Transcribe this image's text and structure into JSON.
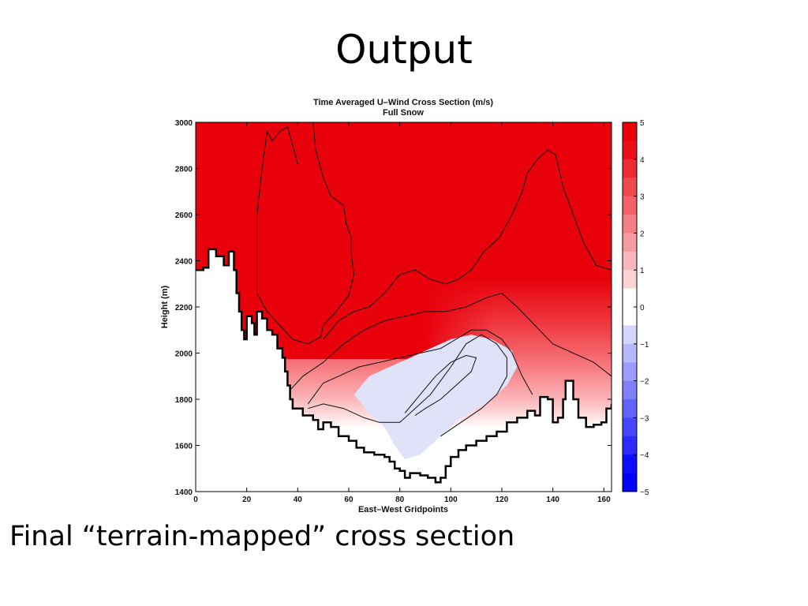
{
  "slide": {
    "title": "Output",
    "caption": "Final “terrain-mapped” cross section"
  },
  "chart_data": {
    "type": "heatmap",
    "title": "Time Averaged U–Wind Cross Section (m/s)",
    "subtitle": "Full Snow",
    "xlabel": "East–West Gridpoints",
    "ylabel": "Height (m)",
    "xlim": [
      0,
      163
    ],
    "ylim": [
      1400,
      3000
    ],
    "xticks": [
      "0",
      "20",
      "40",
      "60",
      "80",
      "100",
      "120",
      "140",
      "160"
    ],
    "yticks": [
      "1400",
      "1600",
      "1800",
      "2000",
      "2200",
      "2400",
      "2600",
      "2800",
      "3000"
    ],
    "colorbar": {
      "range": [
        -5,
        5
      ],
      "ticks": [
        "5",
        "4",
        "3",
        "2",
        "1",
        "0",
        "−1",
        "−2",
        "−3",
        "−4",
        "−5"
      ],
      "positive_color": "#e8000a",
      "negative_color": "#0000ff",
      "zero_color": "#ffffff"
    },
    "terrain": [
      [
        0,
        2360
      ],
      [
        3,
        2370
      ],
      [
        5,
        2450
      ],
      [
        8,
        2420
      ],
      [
        11,
        2380
      ],
      [
        13,
        2440
      ],
      [
        15,
        2360
      ],
      [
        16,
        2260
      ],
      [
        17,
        2180
      ],
      [
        18,
        2100
      ],
      [
        19,
        2060
      ],
      [
        20,
        2160
      ],
      [
        22,
        2130
      ],
      [
        23,
        2080
      ],
      [
        24,
        2180
      ],
      [
        26,
        2150
      ],
      [
        28,
        2100
      ],
      [
        30,
        2080
      ],
      [
        32,
        2020
      ],
      [
        34,
        1980
      ],
      [
        35,
        1920
      ],
      [
        36,
        1860
      ],
      [
        37,
        1800
      ],
      [
        38,
        1760
      ],
      [
        42,
        1730
      ],
      [
        46,
        1710
      ],
      [
        48,
        1670
      ],
      [
        50,
        1700
      ],
      [
        53,
        1680
      ],
      [
        56,
        1640
      ],
      [
        60,
        1620
      ],
      [
        63,
        1590
      ],
      [
        66,
        1570
      ],
      [
        70,
        1560
      ],
      [
        74,
        1550
      ],
      [
        76,
        1530
      ],
      [
        78,
        1500
      ],
      [
        80,
        1490
      ],
      [
        82,
        1460
      ],
      [
        84,
        1480
      ],
      [
        88,
        1470
      ],
      [
        91,
        1460
      ],
      [
        94,
        1440
      ],
      [
        96,
        1460
      ],
      [
        98,
        1510
      ],
      [
        100,
        1550
      ],
      [
        103,
        1580
      ],
      [
        106,
        1600
      ],
      [
        110,
        1620
      ],
      [
        114,
        1640
      ],
      [
        118,
        1660
      ],
      [
        122,
        1700
      ],
      [
        126,
        1720
      ],
      [
        130,
        1750
      ],
      [
        133,
        1730
      ],
      [
        135,
        1810
      ],
      [
        138,
        1800
      ],
      [
        140,
        1700
      ],
      [
        142,
        1720
      ],
      [
        144,
        1800
      ],
      [
        145,
        1880
      ],
      [
        148,
        1800
      ],
      [
        150,
        1720
      ],
      [
        153,
        1680
      ],
      [
        156,
        1690
      ],
      [
        159,
        1700
      ],
      [
        161,
        1760
      ],
      [
        163,
        1780
      ]
    ],
    "contours": [
      {
        "level": 4,
        "points": [
          [
            46,
            3000
          ],
          [
            47,
            2880
          ],
          [
            50,
            2760
          ],
          [
            53,
            2680
          ],
          [
            58,
            2640
          ],
          [
            59,
            2560
          ],
          [
            61,
            2500
          ],
          [
            61,
            2430
          ],
          [
            62,
            2340
          ],
          [
            60,
            2250
          ],
          [
            55,
            2180
          ],
          [
            50,
            2120
          ],
          [
            49,
            2070
          ],
          [
            44,
            2040
          ],
          [
            38,
            2060
          ],
          [
            33,
            2120
          ],
          [
            28,
            2180
          ],
          [
            24,
            2260
          ],
          [
            24,
            2400
          ],
          [
            24,
            2600
          ],
          [
            26,
            2800
          ],
          [
            28,
            2960
          ],
          [
            30,
            2920
          ],
          [
            33,
            2960
          ],
          [
            36,
            2980
          ],
          [
            38,
            2900
          ],
          [
            40,
            2820
          ]
        ]
      },
      {
        "level": 3,
        "points": [
          [
            50,
            2060
          ],
          [
            56,
            2140
          ],
          [
            62,
            2180
          ],
          [
            68,
            2200
          ],
          [
            74,
            2260
          ],
          [
            80,
            2340
          ],
          [
            86,
            2360
          ],
          [
            92,
            2320
          ],
          [
            98,
            2300
          ],
          [
            103,
            2320
          ],
          [
            108,
            2360
          ],
          [
            113,
            2440
          ],
          [
            119,
            2500
          ],
          [
            124,
            2600
          ],
          [
            128,
            2700
          ],
          [
            130,
            2780
          ],
          [
            134,
            2840
          ],
          [
            138,
            2880
          ],
          [
            141,
            2860
          ],
          [
            144,
            2720
          ],
          [
            148,
            2600
          ],
          [
            152,
            2480
          ],
          [
            157,
            2380
          ],
          [
            163,
            2360
          ]
        ]
      },
      {
        "level": 2,
        "points": [
          [
            37,
            1840
          ],
          [
            42,
            1900
          ],
          [
            50,
            1960
          ],
          [
            58,
            2040
          ],
          [
            66,
            2100
          ],
          [
            74,
            2140
          ],
          [
            82,
            2160
          ],
          [
            90,
            2180
          ],
          [
            98,
            2180
          ],
          [
            106,
            2200
          ],
          [
            114,
            2240
          ],
          [
            120,
            2260
          ],
          [
            126,
            2200
          ],
          [
            133,
            2120
          ],
          [
            140,
            2040
          ],
          [
            148,
            2000
          ],
          [
            156,
            1960
          ],
          [
            163,
            1900
          ]
        ]
      },
      {
        "level": 1,
        "points": [
          [
            44,
            1780
          ],
          [
            50,
            1870
          ],
          [
            56,
            1900
          ],
          [
            64,
            1940
          ],
          [
            72,
            1960
          ],
          [
            80,
            1980
          ],
          [
            88,
            2000
          ],
          [
            96,
            2020
          ],
          [
            102,
            2060
          ],
          [
            108,
            2100
          ],
          [
            114,
            2100
          ],
          [
            120,
            2060
          ],
          [
            124,
            2000
          ],
          [
            128,
            1900
          ],
          [
            132,
            1820
          ]
        ]
      },
      {
        "level": 0,
        "points": [
          [
            44,
            1760
          ],
          [
            50,
            1780
          ],
          [
            58,
            1760
          ],
          [
            66,
            1720
          ],
          [
            72,
            1700
          ],
          [
            80,
            1700
          ],
          [
            86,
            1760
          ],
          [
            92,
            1820
          ],
          [
            96,
            1880
          ],
          [
            100,
            1940
          ],
          [
            106,
            2040
          ],
          [
            112,
            2080
          ],
          [
            118,
            2040
          ],
          [
            122,
            1980
          ],
          [
            122,
            1900
          ],
          [
            118,
            1820
          ],
          [
            112,
            1760
          ],
          [
            104,
            1700
          ],
          [
            96,
            1640
          ]
        ]
      },
      {
        "level": -1,
        "points": [
          [
            82,
            1740
          ],
          [
            88,
            1820
          ],
          [
            94,
            1900
          ],
          [
            100,
            1960
          ],
          [
            106,
            1990
          ],
          [
            110,
            1980
          ],
          [
            108,
            1920
          ],
          [
            102,
            1860
          ],
          [
            96,
            1800
          ],
          [
            90,
            1760
          ],
          [
            86,
            1730
          ]
        ]
      }
    ],
    "negative_region": [
      [
        62,
        1820
      ],
      [
        68,
        1900
      ],
      [
        76,
        1940
      ],
      [
        84,
        1980
      ],
      [
        92,
        2020
      ],
      [
        100,
        2060
      ],
      [
        108,
        2080
      ],
      [
        116,
        2060
      ],
      [
        124,
        2010
      ],
      [
        126,
        1940
      ],
      [
        122,
        1860
      ],
      [
        114,
        1780
      ],
      [
        104,
        1720
      ],
      [
        96,
        1640
      ],
      [
        88,
        1560
      ],
      [
        82,
        1540
      ],
      [
        78,
        1600
      ],
      [
        74,
        1680
      ],
      [
        68,
        1740
      ]
    ]
  }
}
